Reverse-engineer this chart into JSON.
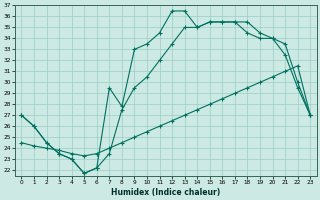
{
  "xlabel": "Humidex (Indice chaleur)",
  "background_color": "#cceae3",
  "grid_color": "#99cec5",
  "line_color": "#007060",
  "xlim": [
    -0.5,
    23.5
  ],
  "ylim": [
    21.5,
    37.0
  ],
  "xticks": [
    0,
    1,
    2,
    3,
    4,
    5,
    6,
    7,
    8,
    9,
    10,
    11,
    12,
    13,
    14,
    15,
    16,
    17,
    18,
    19,
    20,
    21,
    22,
    23
  ],
  "yticks": [
    22,
    23,
    24,
    25,
    26,
    27,
    28,
    29,
    30,
    31,
    32,
    33,
    34,
    35,
    36,
    37
  ],
  "line1_x": [
    0,
    1,
    2,
    3,
    4,
    5,
    6,
    7,
    8,
    9,
    10,
    11,
    12,
    13,
    14,
    15,
    16,
    17,
    18,
    19,
    20,
    21,
    22,
    23
  ],
  "line1_y": [
    27.0,
    26.0,
    24.5,
    23.5,
    23.0,
    21.7,
    22.2,
    29.5,
    27.8,
    33.0,
    33.5,
    34.5,
    36.5,
    36.5,
    35.0,
    35.5,
    35.5,
    35.5,
    35.5,
    34.5,
    34.0,
    32.5,
    29.5,
    27.0
  ],
  "line2_x": [
    0,
    1,
    2,
    3,
    4,
    5,
    6,
    7,
    8,
    9,
    10,
    11,
    12,
    13,
    14,
    15,
    16,
    17,
    18,
    19,
    20,
    21,
    22,
    23
  ],
  "line2_y": [
    24.5,
    24.2,
    24.0,
    23.8,
    23.5,
    23.3,
    23.5,
    24.0,
    24.5,
    25.0,
    25.5,
    26.0,
    26.5,
    27.0,
    27.5,
    28.0,
    28.5,
    29.0,
    29.5,
    30.0,
    30.5,
    31.0,
    31.5,
    27.0
  ],
  "line3_x": [
    0,
    1,
    2,
    3,
    4,
    5,
    6,
    7,
    8,
    9,
    10,
    11,
    12,
    13,
    14,
    15,
    16,
    17,
    18,
    19,
    20,
    21,
    22,
    23
  ],
  "line3_y": [
    27.0,
    26.0,
    24.5,
    23.5,
    23.0,
    21.7,
    22.2,
    23.5,
    27.5,
    29.5,
    30.5,
    32.0,
    33.5,
    35.0,
    35.0,
    35.5,
    35.5,
    35.5,
    34.5,
    34.0,
    34.0,
    33.5,
    30.0,
    27.0
  ]
}
